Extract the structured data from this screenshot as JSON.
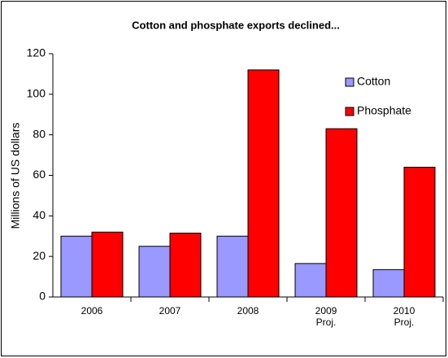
{
  "chart_data": {
    "type": "bar",
    "title": "Cotton and phosphate exports declined...",
    "y_label": "Millions of US dollars",
    "categories": [
      "2006",
      "2007",
      "2008",
      "2009\nProj.",
      "2010\nProj."
    ],
    "series": [
      {
        "name": "Cotton",
        "color": "#9999ff",
        "values": [
          30,
          25,
          30,
          16.5,
          13.5
        ]
      },
      {
        "name": "Phosphate",
        "color": "#ff0000",
        "values": [
          32,
          31.5,
          112,
          83,
          64
        ]
      }
    ],
    "ylim": [
      0,
      120
    ],
    "yticks": [
      0,
      20,
      40,
      60,
      80,
      100,
      120
    ],
    "grid": false,
    "legend": "top-right"
  }
}
